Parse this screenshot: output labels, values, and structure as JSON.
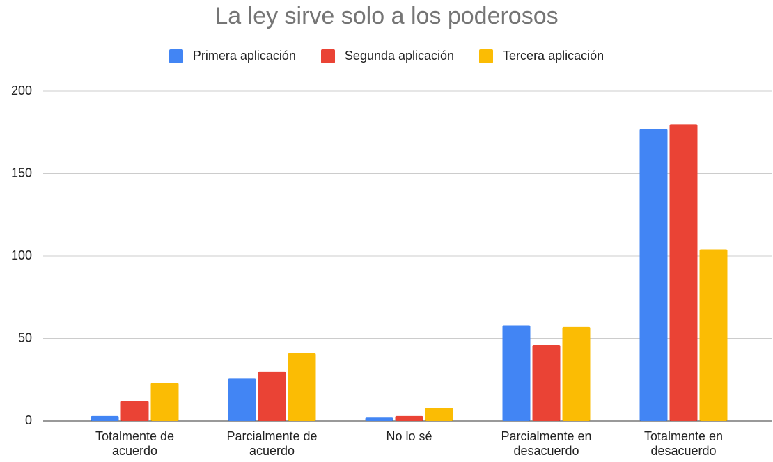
{
  "chart_data": {
    "type": "bar",
    "title": "La ley sirve solo a los poderosos",
    "categories": [
      "Totalmente de acuerdo",
      "Parcialmente de acuerdo",
      "No lo sé",
      "Parcialmente en desacuerdo",
      "Totalmente en desacuerdo"
    ],
    "series": [
      {
        "name": "Primera aplicación",
        "color": "#4285f4",
        "values": [
          3,
          26,
          2,
          58,
          177
        ]
      },
      {
        "name": "Segunda aplicación",
        "color": "#ea4335",
        "values": [
          12,
          30,
          3,
          46,
          180
        ]
      },
      {
        "name": "Tercera aplicación",
        "color": "#fbbc04",
        "values": [
          23,
          41,
          8,
          57,
          104
        ]
      }
    ],
    "ylim": [
      0,
      200
    ],
    "yticks": [
      0,
      50,
      100,
      150,
      200
    ],
    "grid": true,
    "legend": "top"
  }
}
